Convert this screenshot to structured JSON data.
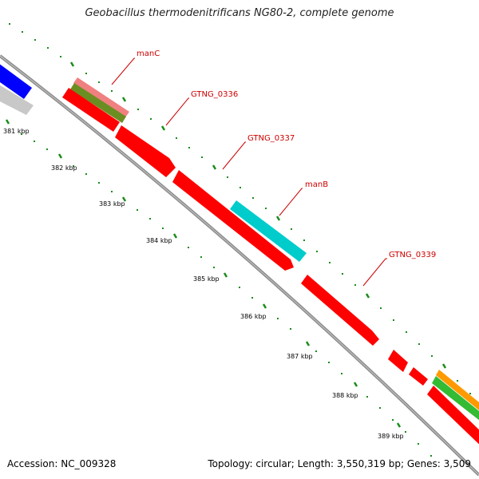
{
  "title": "Geobacillus thermodenitrificans NG80-2, complete genome",
  "footer": {
    "accession": "Accession: NC_009328",
    "topology": "Topology: circular; Length: 3,550,319 bp; Genes: 3,509"
  },
  "colors": {
    "backbone": "#8c8c8c",
    "ruler_ticks": "#1a8c1a",
    "cds_default": "#ff0000",
    "label": "#cc0000",
    "blue_feature": "#0000ff",
    "gray_feature": "#c8c8c8",
    "pink_feature": "#f08080",
    "olive_feature": "#6b8e23",
    "cyan_feature": "#00cccc",
    "green_feature": "#33bb33",
    "orange_feature": "#ff9900"
  },
  "ruler_labels": [
    "381 kbp",
    "382 kbp",
    "383 kbp",
    "384 kbp",
    "385 kbp",
    "386 kbp",
    "387 kbp",
    "388 kbp",
    "389 kbp"
  ],
  "gene_labels": [
    "manC",
    "GTNG_0336",
    "GTNG_0337",
    "manB",
    "GTNG_0339"
  ]
}
